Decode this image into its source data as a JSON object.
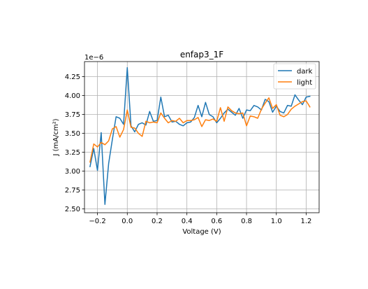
{
  "chart_data": {
    "type": "line",
    "title": "enfap3_1F",
    "xlabel": "Voltage (V)",
    "ylabel": "J (mA/cm²)",
    "y_offset_label": "1e−6",
    "xlim": [
      -0.287,
      1.287
    ],
    "ylim": [
      2.45,
      4.45
    ],
    "x_ticks": [
      -0.2,
      0.0,
      0.2,
      0.4,
      0.6,
      0.8,
      1.0,
      1.2
    ],
    "x_tick_labels": [
      "−0.2",
      "0.0",
      "0.2",
      "0.4",
      "0.6",
      "0.8",
      "1.0",
      "1.2"
    ],
    "y_ticks": [
      2.5,
      2.75,
      3.0,
      3.25,
      3.5,
      3.75,
      4.0,
      4.25
    ],
    "y_tick_labels": [
      "2.50",
      "2.75",
      "3.00",
      "3.25",
      "3.50",
      "3.75",
      "4.00",
      "4.25"
    ],
    "grid": true,
    "legend": "top-right",
    "x": [
      -0.25,
      -0.225,
      -0.2,
      -0.175,
      -0.15,
      -0.125,
      -0.1,
      -0.075,
      -0.05,
      -0.025,
      0.0,
      0.025,
      0.05,
      0.075,
      0.1,
      0.125,
      0.15,
      0.175,
      0.2,
      0.225,
      0.25,
      0.275,
      0.3,
      0.325,
      0.35,
      0.375,
      0.4,
      0.425,
      0.45,
      0.475,
      0.5,
      0.525,
      0.55,
      0.575,
      0.6,
      0.625,
      0.65,
      0.675,
      0.7,
      0.725,
      0.75,
      0.775,
      0.8,
      0.825,
      0.85,
      0.875,
      0.9,
      0.925,
      0.95,
      0.975,
      1.0,
      1.025,
      1.05,
      1.075,
      1.1,
      1.125,
      1.15,
      1.175,
      1.2,
      1.225
    ],
    "series": [
      {
        "name": "dark",
        "color": "#1f77b4",
        "values": [
          3.06,
          3.3,
          3.01,
          3.51,
          2.56,
          3.1,
          3.42,
          3.72,
          3.7,
          3.62,
          4.37,
          3.6,
          3.52,
          3.62,
          3.64,
          3.61,
          3.79,
          3.66,
          3.67,
          3.98,
          3.72,
          3.74,
          3.65,
          3.66,
          3.62,
          3.6,
          3.64,
          3.65,
          3.71,
          3.87,
          3.72,
          3.91,
          3.75,
          3.72,
          3.64,
          3.7,
          3.77,
          3.82,
          3.78,
          3.74,
          3.83,
          3.7,
          3.81,
          3.8,
          3.87,
          3.85,
          3.81,
          3.95,
          3.92,
          3.78,
          3.86,
          3.79,
          3.77,
          3.87,
          3.86,
          4.01,
          3.94,
          3.88,
          3.98,
          3.99
        ]
      },
      {
        "name": "light",
        "color": "#ff7f0e",
        "values": [
          3.12,
          3.36,
          3.32,
          3.38,
          3.35,
          3.4,
          3.56,
          3.59,
          3.45,
          3.55,
          3.81,
          3.58,
          3.57,
          3.5,
          3.46,
          3.66,
          3.64,
          3.65,
          3.64,
          3.77,
          3.7,
          3.64,
          3.67,
          3.66,
          3.7,
          3.64,
          3.67,
          3.67,
          3.68,
          3.71,
          3.59,
          3.68,
          3.67,
          3.69,
          3.66,
          3.84,
          3.66,
          3.85,
          3.8,
          3.77,
          3.76,
          3.77,
          3.6,
          3.73,
          3.72,
          3.7,
          3.82,
          3.9,
          3.97,
          3.83,
          3.88,
          3.74,
          3.72,
          3.75,
          3.82,
          3.86,
          3.89,
          3.92,
          3.93,
          3.85
        ]
      }
    ]
  }
}
